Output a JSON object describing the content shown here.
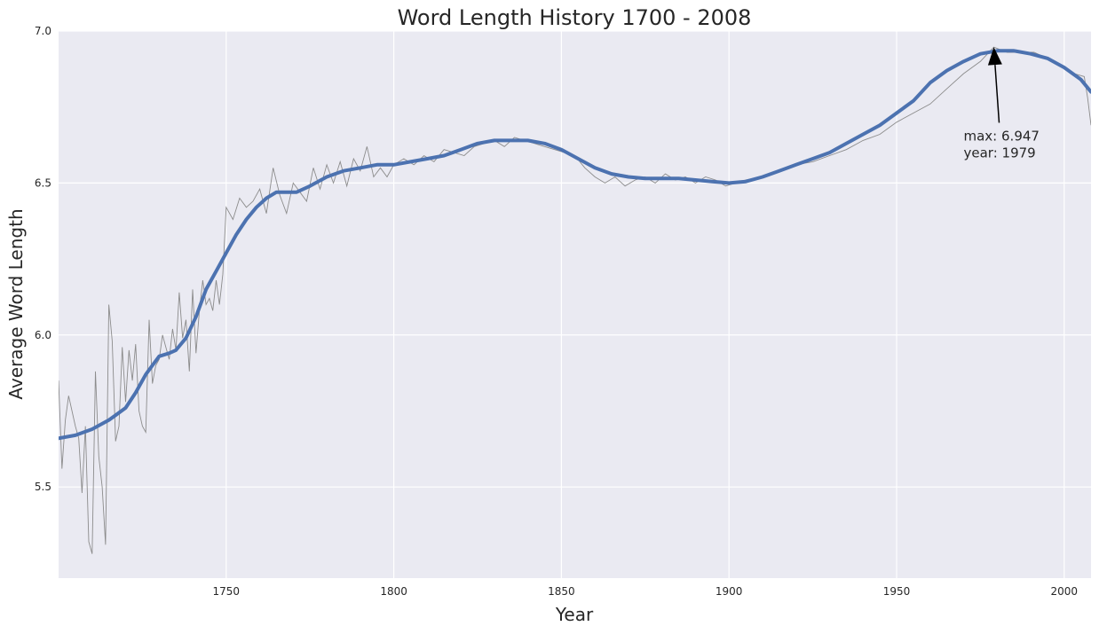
{
  "chart_data": {
    "type": "line",
    "title": "Word Length History 1700 - 2008",
    "xlabel": "Year",
    "ylabel": "Average Word Length",
    "xlim": [
      1700,
      2008
    ],
    "ylim": [
      5.2,
      7.0
    ],
    "xticks": [
      1750,
      1800,
      1850,
      1900,
      1950,
      2000
    ],
    "yticks": [
      5.5,
      6.0,
      6.5,
      7.0
    ],
    "ytick_labels": [
      "5.5",
      "6.0",
      "6.5",
      "7.0"
    ],
    "grid": true,
    "style": {
      "background": "#EAEAF2",
      "grid_color": "#FFFFFF",
      "raw_color": "#8C8C8C",
      "smooth_color": "#4C72B0"
    },
    "series": [
      {
        "role": "raw",
        "x": [
          1700,
          1701,
          1702,
          1703,
          1704,
          1705,
          1706,
          1707,
          1708,
          1709,
          1710,
          1711,
          1712,
          1713,
          1714,
          1715,
          1716,
          1717,
          1718,
          1719,
          1720,
          1721,
          1722,
          1723,
          1724,
          1725,
          1726,
          1727,
          1728,
          1729,
          1730,
          1731,
          1732,
          1733,
          1734,
          1735,
          1736,
          1737,
          1738,
          1739,
          1740,
          1741,
          1742,
          1743,
          1744,
          1745,
          1746,
          1747,
          1748,
          1749,
          1750,
          1752,
          1754,
          1756,
          1758,
          1760,
          1762,
          1764,
          1766,
          1768,
          1770,
          1772,
          1774,
          1776,
          1778,
          1780,
          1782,
          1784,
          1786,
          1788,
          1790,
          1792,
          1794,
          1796,
          1798,
          1800,
          1803,
          1806,
          1809,
          1812,
          1815,
          1818,
          1821,
          1824,
          1827,
          1830,
          1833,
          1836,
          1839,
          1842,
          1845,
          1848,
          1851,
          1854,
          1857,
          1860,
          1863,
          1866,
          1869,
          1872,
          1875,
          1878,
          1881,
          1884,
          1887,
          1890,
          1893,
          1896,
          1899,
          1902,
          1905,
          1910,
          1915,
          1920,
          1925,
          1930,
          1935,
          1940,
          1945,
          1950,
          1955,
          1960,
          1965,
          1970,
          1975,
          1979,
          1983,
          1987,
          1991,
          1995,
          1999,
          2003,
          2006,
          2007,
          2008
        ],
        "y": [
          5.85,
          5.56,
          5.72,
          5.8,
          5.75,
          5.7,
          5.66,
          5.48,
          5.7,
          5.32,
          5.28,
          5.88,
          5.6,
          5.5,
          5.31,
          6.1,
          5.98,
          5.65,
          5.7,
          5.96,
          5.78,
          5.95,
          5.85,
          5.97,
          5.75,
          5.7,
          5.68,
          6.05,
          5.84,
          5.9,
          5.92,
          6.0,
          5.96,
          5.92,
          6.02,
          5.95,
          6.14,
          5.99,
          6.05,
          5.88,
          6.15,
          5.94,
          6.08,
          6.18,
          6.1,
          6.12,
          6.08,
          6.18,
          6.1,
          6.2,
          6.42,
          6.38,
          6.45,
          6.42,
          6.44,
          6.48,
          6.4,
          6.55,
          6.46,
          6.4,
          6.5,
          6.47,
          6.44,
          6.55,
          6.48,
          6.56,
          6.5,
          6.57,
          6.49,
          6.58,
          6.54,
          6.62,
          6.52,
          6.55,
          6.52,
          6.56,
          6.58,
          6.56,
          6.59,
          6.57,
          6.61,
          6.6,
          6.59,
          6.62,
          6.63,
          6.64,
          6.62,
          6.65,
          6.64,
          6.63,
          6.62,
          6.61,
          6.6,
          6.59,
          6.55,
          6.52,
          6.5,
          6.52,
          6.49,
          6.51,
          6.52,
          6.5,
          6.53,
          6.51,
          6.52,
          6.5,
          6.52,
          6.51,
          6.49,
          6.5,
          6.51,
          6.52,
          6.54,
          6.56,
          6.57,
          6.59,
          6.61,
          6.64,
          6.66,
          6.7,
          6.73,
          6.76,
          6.81,
          6.86,
          6.9,
          6.947,
          6.93,
          6.93,
          6.93,
          6.91,
          6.89,
          6.86,
          6.85,
          6.78,
          6.69
        ]
      },
      {
        "role": "smoothed",
        "x": [
          1700,
          1705,
          1710,
          1715,
          1720,
          1723,
          1726,
          1728,
          1730,
          1733,
          1735,
          1738,
          1741,
          1744,
          1747,
          1750,
          1753,
          1756,
          1759,
          1762,
          1765,
          1768,
          1771,
          1775,
          1780,
          1785,
          1790,
          1795,
          1800,
          1805,
          1810,
          1815,
          1820,
          1825,
          1830,
          1835,
          1840,
          1845,
          1850,
          1855,
          1860,
          1865,
          1870,
          1875,
          1880,
          1885,
          1890,
          1895,
          1900,
          1905,
          1910,
          1915,
          1920,
          1925,
          1930,
          1935,
          1940,
          1945,
          1950,
          1955,
          1960,
          1965,
          1970,
          1975,
          1980,
          1985,
          1990,
          1995,
          2000,
          2005,
          2008
        ],
        "y": [
          5.66,
          5.67,
          5.69,
          5.72,
          5.76,
          5.81,
          5.87,
          5.9,
          5.93,
          5.94,
          5.95,
          5.99,
          6.06,
          6.15,
          6.21,
          6.27,
          6.33,
          6.38,
          6.42,
          6.45,
          6.47,
          6.47,
          6.47,
          6.49,
          6.52,
          6.54,
          6.55,
          6.56,
          6.56,
          6.57,
          6.58,
          6.59,
          6.61,
          6.63,
          6.64,
          6.64,
          6.64,
          6.63,
          6.61,
          6.58,
          6.55,
          6.53,
          6.52,
          6.515,
          6.515,
          6.515,
          6.51,
          6.505,
          6.5,
          6.505,
          6.52,
          6.54,
          6.56,
          6.58,
          6.6,
          6.63,
          6.66,
          6.69,
          6.73,
          6.77,
          6.83,
          6.87,
          6.9,
          6.925,
          6.935,
          6.935,
          6.925,
          6.91,
          6.88,
          6.84,
          6.8
        ]
      }
    ],
    "annotation": {
      "label_line1": "max: 6.947",
      "label_line2": "year: 1979",
      "x": 1979,
      "y": 6.947,
      "text_x": 1970,
      "text_y": 6.64
    }
  }
}
